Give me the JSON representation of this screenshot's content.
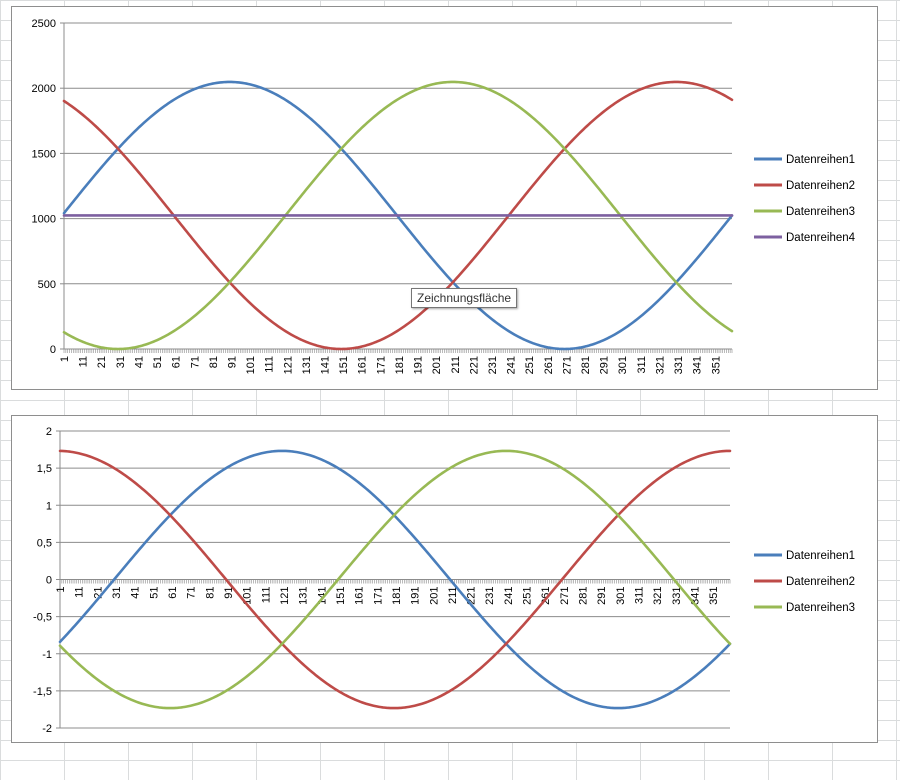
{
  "chart_data": [
    {
      "type": "line",
      "title": "",
      "xlabel": "",
      "ylabel": "",
      "ylim": [
        0,
        2500
      ],
      "xlim": [
        1,
        360
      ],
      "y_ticks": [
        "0",
        "500",
        "1000",
        "1500",
        "2000",
        "2500"
      ],
      "y_tick_values": [
        0,
        500,
        1000,
        1500,
        2000,
        2500
      ],
      "x_labels": [
        "1",
        "11",
        "21",
        "31",
        "41",
        "51",
        "61",
        "71",
        "81",
        "91",
        "101",
        "111",
        "121",
        "131",
        "141",
        "151",
        "161",
        "171",
        "181",
        "191",
        "201",
        "211",
        "221",
        "231",
        "241",
        "251",
        "261",
        "271",
        "281",
        "291",
        "301",
        "311",
        "321",
        "331",
        "341",
        "351"
      ],
      "x_label_values": [
        1,
        11,
        21,
        31,
        41,
        51,
        61,
        71,
        81,
        91,
        101,
        111,
        121,
        131,
        141,
        151,
        161,
        171,
        181,
        191,
        201,
        211,
        221,
        231,
        241,
        251,
        261,
        271,
        281,
        291,
        301,
        311,
        321,
        331,
        341,
        351
      ],
      "grid": true,
      "legend_position": "right",
      "series": [
        {
          "name": "Datenreihen1",
          "color": "#4a7ebb",
          "formula": "1024 + 1024*sin(x)",
          "x": [
            1,
            31,
            61,
            91,
            121,
            151,
            181,
            211,
            241,
            271,
            301,
            331,
            360
          ],
          "y": [
            1042,
            1551,
            1911,
            2048,
            1911,
            1551,
            1024,
            512,
            152,
            0,
            152,
            512,
            1024
          ]
        },
        {
          "name": "Datenreihen2",
          "color": "#be4b48",
          "formula": "1024 + 1024*sin(x+120)",
          "x": [
            1,
            31,
            61,
            91,
            121,
            151,
            181,
            211,
            241,
            271,
            301,
            331,
            360
          ],
          "y": [
            1903,
            1551,
            1024,
            512,
            152,
            0,
            152,
            512,
            1024,
            1536,
            1911,
            2048,
            1911
          ]
        },
        {
          "name": "Datenreihen3",
          "color": "#98b954",
          "formula": "1024 + 1024*sin(x+240)",
          "x": [
            1,
            31,
            61,
            91,
            121,
            151,
            181,
            211,
            241,
            271,
            301,
            331,
            360
          ],
          "y": [
            137,
            0,
            137,
            512,
            1024,
            1536,
            1911,
            2048,
            1911,
            1536,
            1024,
            512,
            137
          ]
        },
        {
          "name": "Datenreihen4",
          "color": "#7d60a0",
          "formula": "1024",
          "x": [
            1,
            360
          ],
          "y": [
            1024,
            1024
          ]
        }
      ],
      "tooltip": "Zeichnungsfläche"
    },
    {
      "type": "line",
      "title": "",
      "xlabel": "",
      "ylabel": "",
      "ylim": [
        -2,
        2
      ],
      "xlim": [
        1,
        360
      ],
      "y_ticks": [
        "-2",
        "-1,5",
        "-1",
        "-0,5",
        "0",
        "0,5",
        "1",
        "1,5",
        "2"
      ],
      "y_tick_values": [
        -2,
        -1.5,
        -1,
        -0.5,
        0,
        0.5,
        1,
        1.5,
        2
      ],
      "x_labels": [
        "1",
        "11",
        "21",
        "31",
        "41",
        "51",
        "61",
        "71",
        "81",
        "91",
        "101",
        "111",
        "121",
        "131",
        "141",
        "151",
        "161",
        "171",
        "181",
        "191",
        "201",
        "211",
        "221",
        "231",
        "241",
        "251",
        "261",
        "271",
        "281",
        "291",
        "301",
        "311",
        "321",
        "331",
        "341",
        "351"
      ],
      "x_label_values": [
        1,
        11,
        21,
        31,
        41,
        51,
        61,
        71,
        81,
        91,
        101,
        111,
        121,
        131,
        141,
        151,
        161,
        171,
        181,
        191,
        201,
        211,
        221,
        231,
        241,
        251,
        261,
        271,
        281,
        291,
        301,
        311,
        321,
        331,
        341,
        351
      ],
      "grid": true,
      "legend_position": "right",
      "series": [
        {
          "name": "Datenreihen1",
          "color": "#4a7ebb",
          "formula": "1.732*sin(x-30)",
          "x": [
            1,
            31,
            61,
            91,
            121,
            151,
            181,
            211,
            241,
            271,
            301,
            331,
            360
          ],
          "y": [
            -0.87,
            0,
            0.87,
            1.5,
            1.73,
            1.5,
            0.87,
            0,
            -0.87,
            -1.5,
            -1.73,
            -1.5,
            -0.87
          ]
        },
        {
          "name": "Datenreihen2",
          "color": "#be4b48",
          "formula": "1.732*sin(x+90)",
          "x": [
            1,
            31,
            61,
            91,
            121,
            151,
            181,
            211,
            241,
            271,
            301,
            331,
            360
          ],
          "y": [
            1.73,
            1.5,
            0.87,
            0,
            -0.87,
            -1.5,
            -1.73,
            -1.5,
            -0.87,
            0,
            0.87,
            1.5,
            1.73
          ]
        },
        {
          "name": "Datenreihen3",
          "color": "#98b954",
          "formula": "1.732*sin(x+210)",
          "x": [
            1,
            31,
            61,
            91,
            121,
            151,
            181,
            211,
            241,
            271,
            301,
            331,
            360
          ],
          "y": [
            -0.87,
            -1.5,
            -1.73,
            -1.5,
            -0.87,
            0,
            0.87,
            1.5,
            1.73,
            1.5,
            0.87,
            0,
            -0.87
          ]
        }
      ]
    }
  ]
}
